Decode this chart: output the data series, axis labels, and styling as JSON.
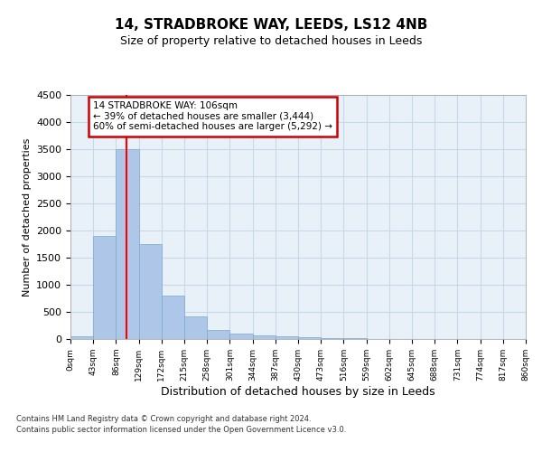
{
  "title1": "14, STRADBROKE WAY, LEEDS, LS12 4NB",
  "title2": "Size of property relative to detached houses in Leeds",
  "xlabel": "Distribution of detached houses by size in Leeds",
  "ylabel": "Number of detached properties",
  "bar_edges": [
    0,
    43,
    86,
    129,
    172,
    215,
    258,
    301,
    344,
    387,
    430,
    473,
    516,
    559,
    602,
    645,
    688,
    731,
    774,
    817,
    860
  ],
  "bar_heights": [
    50,
    1900,
    3500,
    1750,
    800,
    425,
    175,
    100,
    70,
    55,
    40,
    25,
    10,
    5,
    3,
    2,
    1,
    1,
    0,
    0
  ],
  "bar_color": "#aec6e8",
  "bar_edge_color": "#7aaad0",
  "grid_color": "#c8d8e8",
  "bg_color": "#e8f0f8",
  "red_line_x": 106,
  "annotation_text": "14 STRADBROKE WAY: 106sqm\n← 39% of detached houses are smaller (3,444)\n60% of semi-detached houses are larger (5,292) →",
  "annotation_box_color": "#ffffff",
  "annotation_box_edge": "#cc0000",
  "ylim": [
    0,
    4500
  ],
  "yticks": [
    0,
    500,
    1000,
    1500,
    2000,
    2500,
    3000,
    3500,
    4000,
    4500
  ],
  "tick_labels": [
    "0sqm",
    "43sqm",
    "86sqm",
    "129sqm",
    "172sqm",
    "215sqm",
    "258sqm",
    "301sqm",
    "344sqm",
    "387sqm",
    "430sqm",
    "473sqm",
    "516sqm",
    "559sqm",
    "602sqm",
    "645sqm",
    "688sqm",
    "731sqm",
    "774sqm",
    "817sqm",
    "860sqm"
  ],
  "footer1": "Contains HM Land Registry data © Crown copyright and database right 2024.",
  "footer2": "Contains public sector information licensed under the Open Government Licence v3.0."
}
